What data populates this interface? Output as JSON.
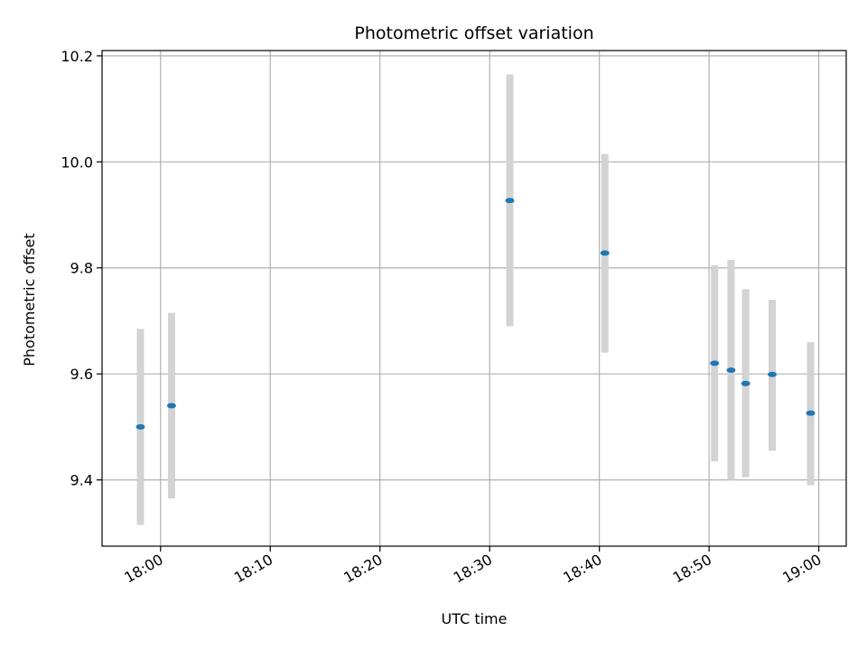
{
  "chart_data": {
    "type": "scatter",
    "title": "Photometric offset variation",
    "xlabel": "UTC time",
    "ylabel": "Photometric offset",
    "x_ticks": [
      "18:00",
      "18:10",
      "18:20",
      "18:30",
      "18:40",
      "18:50",
      "19:00"
    ],
    "y_ticks": [
      "9.4",
      "9.6",
      "9.8",
      "10.0",
      "10.2"
    ],
    "xlim": [
      "17:54:40",
      "19:02:30"
    ],
    "ylim": [
      9.275,
      10.21
    ],
    "grid": true,
    "points": [
      {
        "x": "17:58:10",
        "y": 9.5,
        "err_low": 9.315,
        "err_high": 9.685
      },
      {
        "x": "18:01:00",
        "y": 9.54,
        "err_low": 9.365,
        "err_high": 9.715
      },
      {
        "x": "18:31:50",
        "y": 9.927,
        "err_low": 9.69,
        "err_high": 10.165
      },
      {
        "x": "18:40:30",
        "y": 9.828,
        "err_low": 9.64,
        "err_high": 10.015
      },
      {
        "x": "18:50:30",
        "y": 9.62,
        "err_low": 9.435,
        "err_high": 9.805
      },
      {
        "x": "18:52:00",
        "y": 9.607,
        "err_low": 9.4,
        "err_high": 9.815
      },
      {
        "x": "18:53:20",
        "y": 9.582,
        "err_low": 9.405,
        "err_high": 9.76
      },
      {
        "x": "18:55:45",
        "y": 9.599,
        "err_low": 9.455,
        "err_high": 9.74
      },
      {
        "x": "18:59:15",
        "y": 9.526,
        "err_low": 9.39,
        "err_high": 9.66
      }
    ],
    "colors": {
      "point": "#1f77b4",
      "errorbar": "#d3d3d3",
      "grid": "#b0b0b0",
      "axes": "#000000"
    }
  }
}
